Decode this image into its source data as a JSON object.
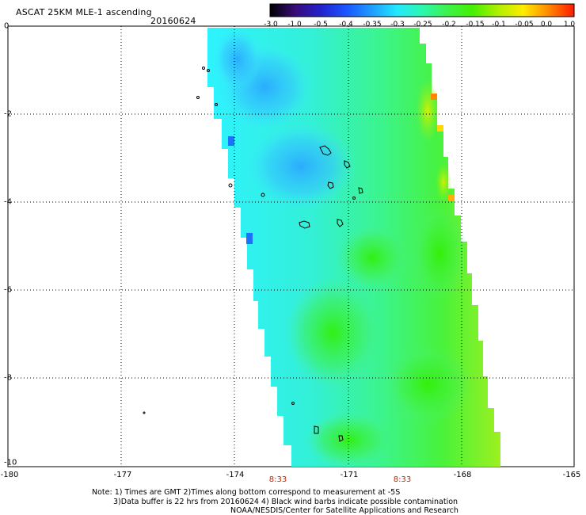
{
  "header": {
    "title": "ASCAT 25KM MLE-1 ascending",
    "date": "20160624"
  },
  "colorbar": {
    "labels": [
      "-3.0",
      "-1.0",
      "-0.5",
      "-0.4",
      "-0.35",
      "-0.3",
      "-0.25",
      "-0.2",
      "-0.15",
      "-0.1",
      "-0.05",
      "0.0",
      "1.0"
    ],
    "colors": [
      "#000000",
      "#3a0c7a",
      "#2222cc",
      "#1a55ff",
      "#1e9bff",
      "#22e8ff",
      "#2bf7b0",
      "#3cf24a",
      "#45f000",
      "#aef000",
      "#ffec00",
      "#ff8800",
      "#ff1a00"
    ]
  },
  "axes": {
    "lon_labels": [
      "-180",
      "-177",
      "-174",
      "-171",
      "-168",
      "-165"
    ],
    "lat_labels": [
      "0",
      "-2",
      "-4",
      "-6",
      "-8",
      "-10"
    ]
  },
  "swath": {
    "times": [
      "8:33",
      "8:33"
    ]
  },
  "notes": {
    "line1": "Note: 1) Times are GMT 2)Times along bottom correspond to measurement at -5S",
    "line2": "3)Data buffer is 22 hrs from 20160624 4) Black wind barbs indicate possible contamination",
    "line3": "NOAA/NESDIS/Center for Satellite Applications and Research"
  }
}
